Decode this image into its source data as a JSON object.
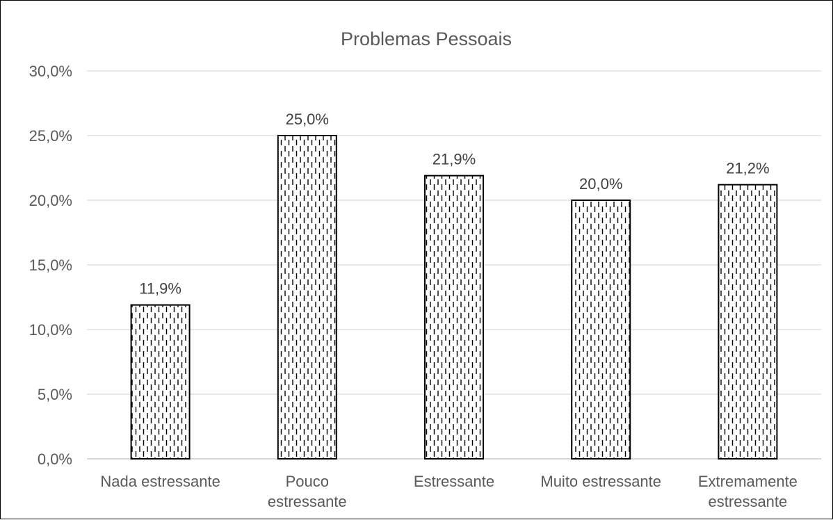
{
  "chart_data": {
    "type": "bar",
    "title": "Problemas Pessoais",
    "categories": [
      [
        "Nada estressante"
      ],
      [
        "Pouco",
        "estressante"
      ],
      [
        "Estressante"
      ],
      [
        "Muito estressante"
      ],
      [
        "Extremamente",
        "estressante"
      ]
    ],
    "values": [
      11.9,
      25.0,
      21.9,
      20.0,
      21.2
    ],
    "data_labels": [
      "11,9%",
      "25,0%",
      "21,9%",
      "20,0%",
      "21,2%"
    ],
    "ylim": [
      0,
      30
    ],
    "yticks": [
      0,
      5,
      10,
      15,
      20,
      25,
      30
    ],
    "ytick_labels": [
      "0,0%",
      "5,0%",
      "10,0%",
      "15,0%",
      "20,0%",
      "25,0%",
      "30,0%"
    ],
    "xlabel": "",
    "ylabel": "",
    "grid": true,
    "legend": "none",
    "bar_fill": "dashed-vertical-pattern",
    "colors": {
      "gridline": "#d9d9d9",
      "bar_outline": "#000000",
      "text": "#595959",
      "axis": "#bfbfbf"
    }
  }
}
